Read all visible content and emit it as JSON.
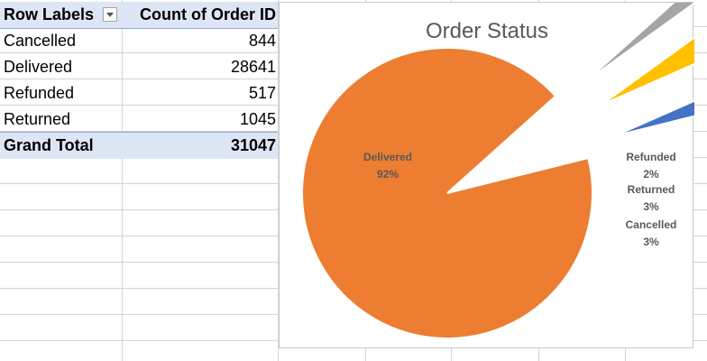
{
  "pivot": {
    "header": {
      "row_labels": "Row Labels",
      "count_label": "Count of Order ID"
    },
    "rows": [
      {
        "label": "Cancelled",
        "value": "844"
      },
      {
        "label": "Delivered",
        "value": "28641"
      },
      {
        "label": "Refunded",
        "value": "517"
      },
      {
        "label": "Returned",
        "value": "1045"
      }
    ],
    "total": {
      "label": "Grand Total",
      "value": "31047"
    }
  },
  "chart_data": {
    "type": "pie",
    "title": "Order Status",
    "slices": [
      {
        "name": "Delivered",
        "value": 28641,
        "percent_label": "92%",
        "color": "#ed7d31"
      },
      {
        "name": "Refunded",
        "value": 517,
        "percent_label": "2%",
        "color": "#a5a5a5"
      },
      {
        "name": "Returned",
        "value": 1045,
        "percent_label": "3%",
        "color": "#ffc000"
      },
      {
        "name": "Cancelled",
        "value": 844,
        "percent_label": "3%",
        "color": "#4472c4"
      }
    ],
    "legend": "none"
  }
}
